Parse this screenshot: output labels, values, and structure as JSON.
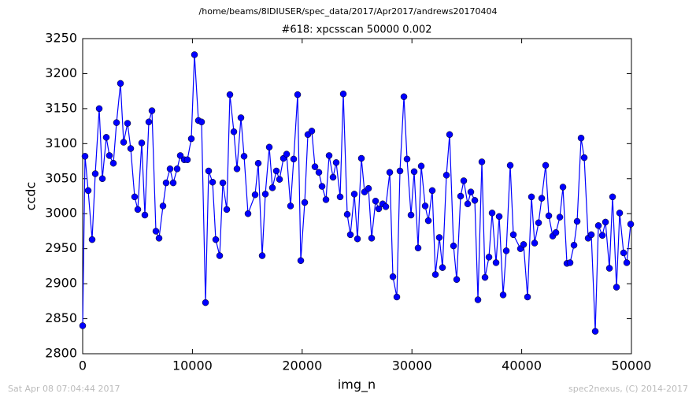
{
  "chart_data": {
    "type": "line",
    "suptitle": "/home/beams/8IDIUSER/spec_data/2017/Apr2017/andrews20170404",
    "title": "#618: xpcsscan 50000 0.002",
    "xlabel": "img_n",
    "ylabel": "ccdc",
    "timestamp": "Sat Apr 08 07:04:44 2017",
    "credit": "spec2nexus, (C) 2014-2017",
    "color": "#0000ff",
    "marker": "circle",
    "grid": false,
    "xlim": [
      0,
      50000
    ],
    "xticks": [
      0,
      10000,
      20000,
      30000,
      40000,
      50000
    ],
    "ylim": [
      2800,
      3250
    ],
    "yticks": [
      2800,
      2850,
      2900,
      2950,
      3000,
      3050,
      3100,
      3150,
      3200,
      3250
    ],
    "x": [
      0,
      215,
      502,
      861,
      1148,
      1507,
      1794,
      2152,
      2439,
      2798,
      3085,
      3444,
      3731,
      4089,
      4376,
      4735,
      5022,
      5381,
      5667,
      6026,
      6313,
      6672,
      6959,
      7318,
      7604,
      7963,
      8250,
      8609,
      8896,
      9255,
      9541,
      9900,
      10187,
      10546,
      10833,
      11192,
      11478,
      11837,
      12124,
      12483,
      12770,
      13128,
      13415,
      13774,
      14061,
      14420,
      14707,
      15065,
      15711,
      15998,
      16357,
      16644,
      17002,
      17289,
      17648,
      17935,
      18294,
      18581,
      18939,
      19226,
      19585,
      19872,
      20231,
      20518,
      20876,
      21163,
      21522,
      21809,
      22168,
      22455,
      22813,
      23100,
      23459,
      23746,
      24105,
      24392,
      24750,
      25037,
      25396,
      25683,
      26042,
      26329,
      26687,
      26974,
      27333,
      27620,
      27979,
      28266,
      28624,
      28911,
      29270,
      29557,
      29916,
      30203,
      30561,
      30848,
      31207,
      31494,
      31853,
      32140,
      32498,
      32785,
      33144,
      33431,
      33790,
      34077,
      34435,
      34722,
      35081,
      35368,
      35727,
      36014,
      36372,
      36659,
      37018,
      37305,
      37664,
      37951,
      38309,
      38596,
      38955,
      39242,
      39888,
      40174,
      40533,
      40892,
      41179,
      41538,
      41825,
      42183,
      42470,
      42829,
      43116,
      43475,
      43761,
      44120,
      44407,
      44766,
      45053,
      45412,
      45698,
      46057,
      46344,
      46703,
      46990,
      47349,
      47636,
      47994,
      48281,
      48640,
      48927,
      49286,
      49573,
      49932
    ],
    "values": [
      2840,
      3082,
      3033,
      2963,
      3057,
      3150,
      3050,
      3109,
      3083,
      3072,
      3130,
      3186,
      3102,
      3129,
      3093,
      3024,
      3006,
      3101,
      2998,
      3131,
      3147,
      2975,
      2965,
      3011,
      3044,
      3064,
      3044,
      3064,
      3083,
      3077,
      3077,
      3107,
      3227,
      3133,
      3131,
      2873,
      3061,
      3045,
      2963,
      2940,
      3044,
      3006,
      3170,
      3117,
      3064,
      3137,
      3082,
      3000,
      3027,
      3072,
      2940,
      3028,
      3095,
      3037,
      3061,
      3049,
      3079,
      3085,
      3011,
      3078,
      3170,
      2933,
      3016,
      3113,
      3118,
      3067,
      3059,
      3039,
      3020,
      3083,
      3052,
      3073,
      3024,
      3171,
      2999,
      2970,
      3028,
      2964,
      3079,
      3031,
      3036,
      2965,
      3018,
      3007,
      3014,
      3010,
      3059,
      2910,
      2881,
      3061,
      3167,
      3078,
      2998,
      3060,
      2951,
      3068,
      3011,
      2990,
      3033,
      2913,
      2966,
      2923,
      3055,
      3113,
      2954,
      2906,
      3025,
      3047,
      3014,
      3031,
      3019,
      2877,
      3074,
      2909,
      2938,
      3001,
      2930,
      2996,
      2884,
      2947,
      3069,
      2970,
      2950,
      2956,
      2881,
      3024,
      2958,
      2987,
      3022,
      3069,
      2997,
      2968,
      2973,
      2995,
      3038,
      2929,
      2930,
      2955,
      2989,
      3108,
      3080,
      2965,
      2970,
      2832,
      2983,
      2969,
      2988,
      2922,
      3024,
      2895,
      3001,
      2944,
      2930,
      2985
    ]
  }
}
